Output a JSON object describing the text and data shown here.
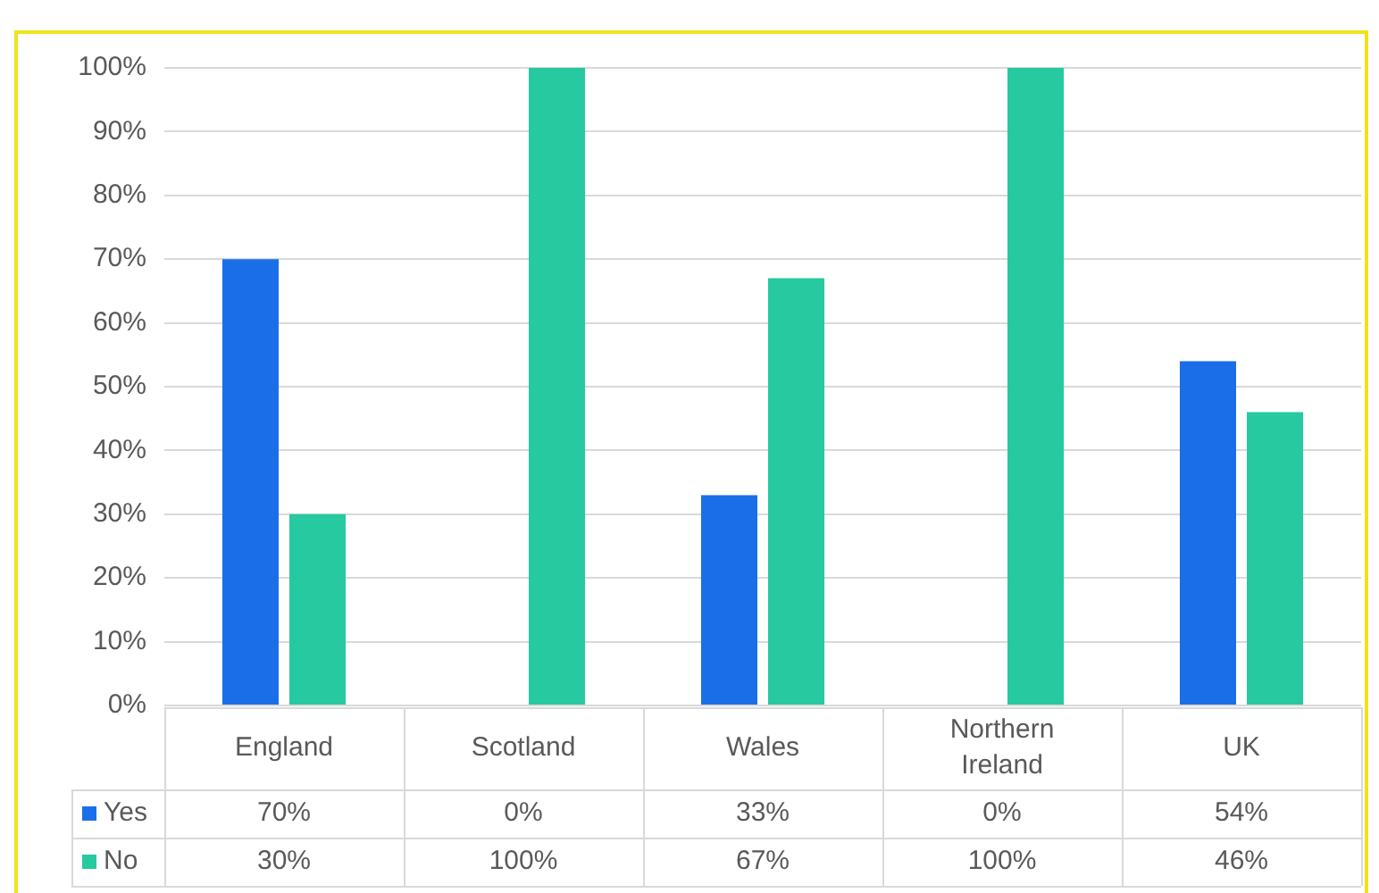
{
  "chart_data": {
    "type": "bar",
    "categories": [
      "England",
      "Scotland",
      "Wales",
      "Northern Ireland",
      "UK"
    ],
    "series": [
      {
        "name": "Yes",
        "color": "#1a6fe8",
        "values": [
          70,
          0,
          33,
          0,
          54
        ],
        "value_labels": [
          "70%",
          "0%",
          "33%",
          "0%",
          "54%"
        ]
      },
      {
        "name": "No",
        "color": "#26c9a0",
        "values": [
          30,
          100,
          67,
          100,
          46
        ],
        "value_labels": [
          "30%",
          "100%",
          "67%",
          "100%",
          "46%"
        ]
      }
    ],
    "ylim": [
      0,
      100
    ],
    "yticks": [
      {
        "value": 0,
        "label": "0%"
      },
      {
        "value": 10,
        "label": "10%"
      },
      {
        "value": 20,
        "label": "20%"
      },
      {
        "value": 30,
        "label": "30%"
      },
      {
        "value": 40,
        "label": "40%"
      },
      {
        "value": 50,
        "label": "50%"
      },
      {
        "value": 60,
        "label": "60%"
      },
      {
        "value": 70,
        "label": "70%"
      },
      {
        "value": 80,
        "label": "80%"
      },
      {
        "value": 90,
        "label": "90%"
      },
      {
        "value": 100,
        "label": "100%"
      }
    ],
    "grid": "y",
    "legend": "bottom left"
  }
}
